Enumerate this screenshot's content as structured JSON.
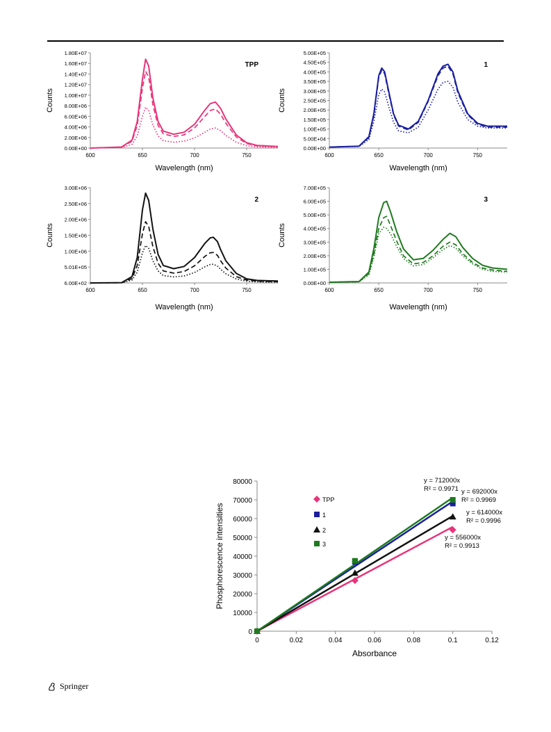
{
  "footer": {
    "publisher": "Springer"
  },
  "chart_data": [
    {
      "type": "line",
      "label": "TPP",
      "xlabel": "Wavelength (nm)",
      "ylabel": "Counts",
      "xlim": [
        600,
        780
      ],
      "ylim": [
        0,
        18000000
      ],
      "x_ticks": [
        "600",
        "650",
        "700",
        "750"
      ],
      "y_ticks": [
        "0.00E+00",
        "2.00E+06",
        "4.00E+06",
        "6.00E+06",
        "8.00E+06",
        "1.00E+07",
        "1.20E+07",
        "1.40E+07",
        "1.60E+07",
        "1.80E+07"
      ],
      "color": "#e8347a",
      "series": [
        {
          "style": "solid",
          "x": [
            600,
            630,
            640,
            645,
            650,
            653,
            656,
            660,
            665,
            670,
            680,
            690,
            700,
            710,
            715,
            720,
            725,
            730,
            740,
            750,
            760,
            780
          ],
          "values": [
            0,
            200000,
            1500000,
            5000000,
            13000000,
            16800000,
            15500000,
            9500000,
            5000000,
            3200000,
            2600000,
            3000000,
            4500000,
            7200000,
            8400000,
            8700000,
            7500000,
            5500000,
            2500000,
            1000000,
            500000,
            300000
          ]
        },
        {
          "style": "dashed",
          "x": [
            600,
            630,
            640,
            645,
            650,
            653,
            656,
            660,
            665,
            670,
            680,
            690,
            700,
            710,
            715,
            720,
            725,
            730,
            740,
            750,
            760,
            780
          ],
          "values": [
            0,
            180000,
            1300000,
            4300000,
            11300000,
            14500000,
            13400000,
            8200000,
            4300000,
            2700000,
            2200000,
            2500000,
            3800000,
            6000000,
            7100000,
            7400000,
            6400000,
            4700000,
            2100000,
            850000,
            420000,
            250000
          ]
        },
        {
          "style": "dotted",
          "x": [
            600,
            630,
            640,
            645,
            650,
            653,
            656,
            660,
            665,
            670,
            680,
            690,
            700,
            710,
            715,
            720,
            725,
            730,
            740,
            750,
            760,
            780
          ],
          "values": [
            0,
            100000,
            700000,
            2300000,
            6000000,
            7700000,
            7100000,
            4400000,
            2300000,
            1400000,
            1100000,
            1300000,
            1900000,
            3000000,
            3600000,
            3800000,
            3300000,
            2400000,
            1100000,
            450000,
            220000,
            130000
          ]
        }
      ]
    },
    {
      "type": "line",
      "label": "1",
      "xlabel": "Wavelength (nm)",
      "ylabel": "Counts",
      "xlim": [
        600,
        780
      ],
      "ylim": [
        0,
        500000
      ],
      "x_ticks": [
        "600",
        "650",
        "700",
        "750"
      ],
      "y_ticks": [
        "0.00E+00",
        "5.00E+04",
        "1.00E+05",
        "1.50E+05",
        "2.00E+05",
        "2.50E+05",
        "3.00E+05",
        "3.50E+05",
        "4.00E+05",
        "4.50E+05",
        "5.00E+05"
      ],
      "color": "#1a1f9e",
      "series": [
        {
          "style": "solid",
          "x": [
            600,
            630,
            640,
            645,
            650,
            653,
            656,
            660,
            665,
            670,
            680,
            690,
            700,
            710,
            715,
            720,
            725,
            730,
            740,
            750,
            760,
            780
          ],
          "values": [
            5000,
            10000,
            60000,
            180000,
            380000,
            420000,
            400000,
            300000,
            180000,
            120000,
            100000,
            140000,
            250000,
            390000,
            430000,
            440000,
            400000,
            300000,
            180000,
            130000,
            115000,
            115000
          ]
        },
        {
          "style": "dashed",
          "x": [
            600,
            630,
            640,
            645,
            650,
            653,
            656,
            660,
            665,
            670,
            680,
            690,
            700,
            710,
            715,
            720,
            725,
            730,
            740,
            750,
            760,
            780
          ],
          "values": [
            5000,
            10000,
            55000,
            170000,
            370000,
            410000,
            390000,
            290000,
            175000,
            115000,
            95000,
            135000,
            245000,
            380000,
            420000,
            430000,
            390000,
            290000,
            175000,
            125000,
            110000,
            110000
          ]
        },
        {
          "style": "dotted",
          "x": [
            600,
            630,
            640,
            645,
            650,
            653,
            656,
            660,
            665,
            670,
            680,
            690,
            700,
            710,
            715,
            720,
            725,
            730,
            740,
            750,
            760,
            780
          ],
          "values": [
            5000,
            8000,
            45000,
            140000,
            280000,
            310000,
            295000,
            220000,
            135000,
            90000,
            80000,
            110000,
            200000,
            310000,
            345000,
            350000,
            320000,
            240000,
            150000,
            115000,
            105000,
            105000
          ]
        }
      ]
    },
    {
      "type": "line",
      "label": "2",
      "xlabel": "Wavelength (nm)",
      "ylabel": "Counts",
      "xlim": [
        600,
        780
      ],
      "ylim": [
        600,
        3000000
      ],
      "x_ticks": [
        "600",
        "650",
        "700",
        "750"
      ],
      "y_ticks": [
        "6.00E+02",
        "5.01E+05",
        "1.00E+06",
        "1.50E+06",
        "2.00E+06",
        "2.50E+06",
        "3.00E+06"
      ],
      "color": "#111111",
      "series": [
        {
          "style": "solid",
          "x": [
            600,
            630,
            640,
            645,
            650,
            653,
            656,
            660,
            665,
            670,
            680,
            690,
            700,
            710,
            715,
            718,
            722,
            725,
            730,
            740,
            750,
            760,
            780
          ],
          "values": [
            600,
            10000,
            200000,
            800000,
            2300000,
            2830000,
            2600000,
            1700000,
            900000,
            550000,
            450000,
            520000,
            800000,
            1250000,
            1420000,
            1440000,
            1300000,
            1050000,
            700000,
            300000,
            130000,
            80000,
            60000
          ]
        },
        {
          "style": "dashed",
          "x": [
            600,
            630,
            640,
            645,
            650,
            653,
            656,
            660,
            665,
            670,
            680,
            690,
            700,
            710,
            715,
            718,
            722,
            725,
            730,
            740,
            750,
            760,
            780
          ],
          "values": [
            600,
            8000,
            140000,
            550000,
            1550000,
            1930000,
            1780000,
            1150000,
            620000,
            380000,
            310000,
            360000,
            540000,
            840000,
            950000,
            960000,
            870000,
            700000,
            470000,
            200000,
            90000,
            55000,
            40000
          ]
        },
        {
          "style": "dotted",
          "x": [
            600,
            630,
            640,
            645,
            650,
            653,
            656,
            660,
            665,
            670,
            680,
            690,
            700,
            710,
            715,
            718,
            722,
            725,
            730,
            740,
            750,
            760,
            780
          ],
          "values": [
            600,
            5000,
            90000,
            340000,
            950000,
            1180000,
            1090000,
            700000,
            380000,
            230000,
            190000,
            220000,
            330000,
            510000,
            580000,
            590000,
            530000,
            430000,
            290000,
            125000,
            55000,
            35000,
            25000
          ]
        }
      ]
    },
    {
      "type": "line",
      "label": "3",
      "xlabel": "Wavelength (nm)",
      "ylabel": "Counts",
      "xlim": [
        600,
        780
      ],
      "ylim": [
        0,
        700000
      ],
      "x_ticks": [
        "600",
        "650",
        "700",
        "750"
      ],
      "y_ticks": [
        "0.00E+00",
        "1.00E+05",
        "2.00E+05",
        "3.00E+05",
        "4.00E+05",
        "5.00E+05",
        "6.00E+05",
        "7.00E+05"
      ],
      "color": "#1f7a1f",
      "series": [
        {
          "style": "solid",
          "x": [
            600,
            630,
            640,
            645,
            650,
            655,
            658,
            662,
            668,
            675,
            685,
            695,
            705,
            715,
            722,
            728,
            735,
            745,
            755,
            765,
            780
          ],
          "values": [
            5000,
            10000,
            80000,
            250000,
            480000,
            590000,
            600000,
            520000,
            380000,
            250000,
            170000,
            180000,
            240000,
            320000,
            365000,
            340000,
            260000,
            180000,
            130000,
            110000,
            100000
          ]
        },
        {
          "style": "dashed",
          "x": [
            600,
            630,
            640,
            645,
            650,
            655,
            658,
            662,
            668,
            675,
            685,
            695,
            705,
            715,
            722,
            728,
            735,
            745,
            755,
            765,
            780
          ],
          "values": [
            5000,
            9000,
            70000,
            210000,
            400000,
            480000,
            490000,
            420000,
            310000,
            200000,
            140000,
            150000,
            200000,
            270000,
            300000,
            280000,
            215000,
            150000,
            110000,
            95000,
            85000
          ]
        },
        {
          "style": "dotted",
          "x": [
            600,
            630,
            640,
            645,
            650,
            655,
            658,
            662,
            668,
            675,
            685,
            695,
            705,
            715,
            722,
            728,
            735,
            745,
            755,
            765,
            780
          ],
          "values": [
            5000,
            8000,
            60000,
            190000,
            360000,
            410000,
            400000,
            360000,
            270000,
            180000,
            125000,
            135000,
            185000,
            245000,
            275000,
            255000,
            200000,
            140000,
            100000,
            85000,
            80000
          ]
        }
      ]
    },
    {
      "type": "scatter",
      "xlabel": "Absorbance",
      "ylabel": "Phosphorescence intensities",
      "xlim": [
        0,
        0.12
      ],
      "ylim": [
        0,
        80000
      ],
      "x_ticks": [
        "0",
        "0.02",
        "0.04",
        "0.06",
        "0.08",
        "0.1",
        "0.12"
      ],
      "y_ticks": [
        "0",
        "10000",
        "20000",
        "30000",
        "40000",
        "50000",
        "60000",
        "70000",
        "80000"
      ],
      "series": [
        {
          "name": "TPP",
          "marker": "diamond",
          "color": "#e8347a",
          "x": [
            0,
            0.05,
            0.1
          ],
          "values": [
            0,
            27000,
            54000
          ],
          "slope": 556000,
          "equation": "y = 556000x",
          "r2": "R² = 0.9913"
        },
        {
          "name": "1",
          "marker": "square",
          "color": "#1a1f9e",
          "x": [
            0,
            0.05,
            0.1
          ],
          "values": [
            0,
            37000,
            68000
          ],
          "slope": 692000,
          "equation": "y = 692000x",
          "r2": "R² = 0.9969"
        },
        {
          "name": "2",
          "marker": "triangle",
          "color": "#111111",
          "x": [
            0,
            0.05,
            0.1
          ],
          "values": [
            0,
            31000,
            61000
          ],
          "slope": 614000,
          "equation": "y = 614000x",
          "r2": "R² = 0.9996"
        },
        {
          "name": "3",
          "marker": "square",
          "color": "#1f7a1f",
          "x": [
            0,
            0.05,
            0.1
          ],
          "values": [
            0,
            37500,
            70000
          ],
          "slope": 712000,
          "equation": "y = 712000x",
          "r2": "R² = 0.9971"
        }
      ]
    }
  ]
}
